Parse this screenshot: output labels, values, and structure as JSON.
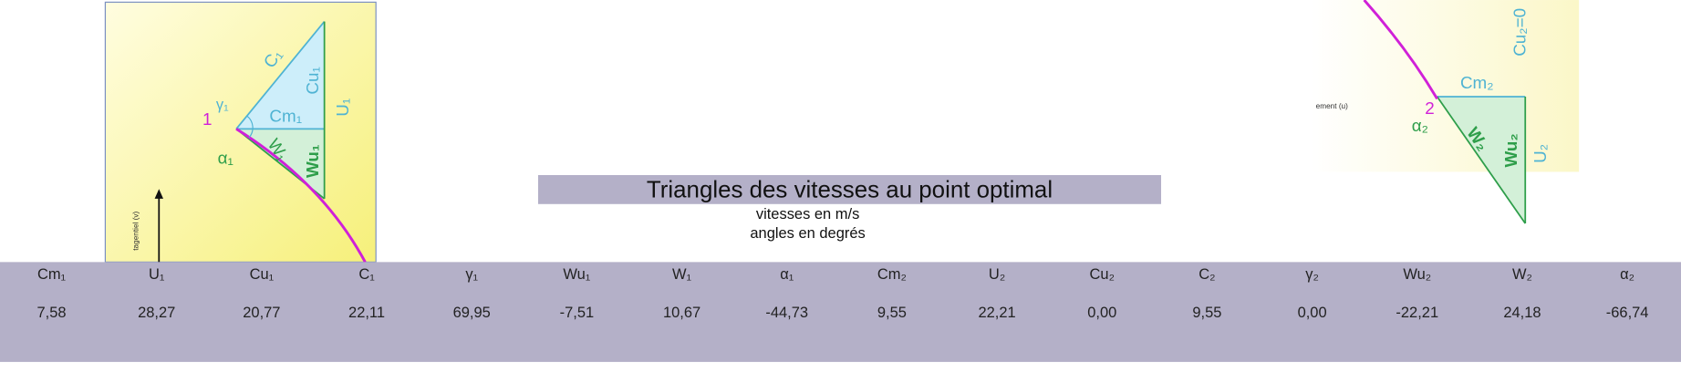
{
  "title": "Triangles des vitesses au point optimal",
  "notes": [
    "vitesses en m/s",
    "angles en degrés"
  ],
  "table": {
    "headers": [
      "Cm₁",
      "U₁",
      "Cu₁",
      "C₁",
      "γ₁",
      "Wu₁",
      "W₁",
      "α₁",
      "Cm₂",
      "U₂",
      "Cu₂",
      "C₂",
      "γ₂",
      "Wu₂",
      "W₂",
      "α₂"
    ],
    "rows": [
      [
        "7,58",
        "28,27",
        "20,77",
        "22,11",
        "69,95",
        "-7,51",
        "10,67",
        "-44,73",
        "9,55",
        "22,21",
        "0,00",
        "9,55",
        "0,00",
        "-22,21",
        "24,18",
        "-66,74"
      ]
    ]
  },
  "diagram_left": {
    "c": "C₁",
    "cu": "Cu₁",
    "u": "U₁",
    "gamma": "γ₁",
    "cm": "Cm₁",
    "point": "1",
    "alpha": "α₁",
    "w": "W₁",
    "wu": "Wu₁",
    "axis": "tagentiel (v)"
  },
  "diagram_right": {
    "cu": "Cu₂=0",
    "cm": "Cm₂",
    "point": "2",
    "alpha": "α₂",
    "w": "W₂",
    "wu": "Wu₂",
    "u": "U₂",
    "axis": "ement (u)"
  }
}
